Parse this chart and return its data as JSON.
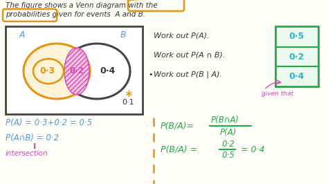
{
  "bg_color": "#fffef8",
  "title_line1": "The figure shows a Venn diagram with the",
  "title_line2": "probabilities given for events  A and B.",
  "venn_label_A": "A",
  "venn_label_B": "B",
  "val_left": "0·3",
  "val_middle": "0·2",
  "val_right": "0·4",
  "val_outside": "0·1",
  "work_out_1": "Work out P(A).",
  "work_out_2": "Work out P(A ∩ B).",
  "work_out_3": "Work out P(B | A).",
  "answer_1": "0·5",
  "answer_2": "0·2",
  "answer_3": "0·4",
  "eq1": "P(A) = 0·3+0·2 = 0·5",
  "eq2": "P(A∩B) = 0·2",
  "eq3_label": "intersection",
  "given_that": "given that",
  "color_orange": "#e8920a",
  "color_blue": "#5599dd",
  "color_magenta": "#dd44bb",
  "color_green": "#22aa44",
  "color_cyan": "#22bbcc",
  "color_dark": "#333333",
  "color_gray": "#666666"
}
